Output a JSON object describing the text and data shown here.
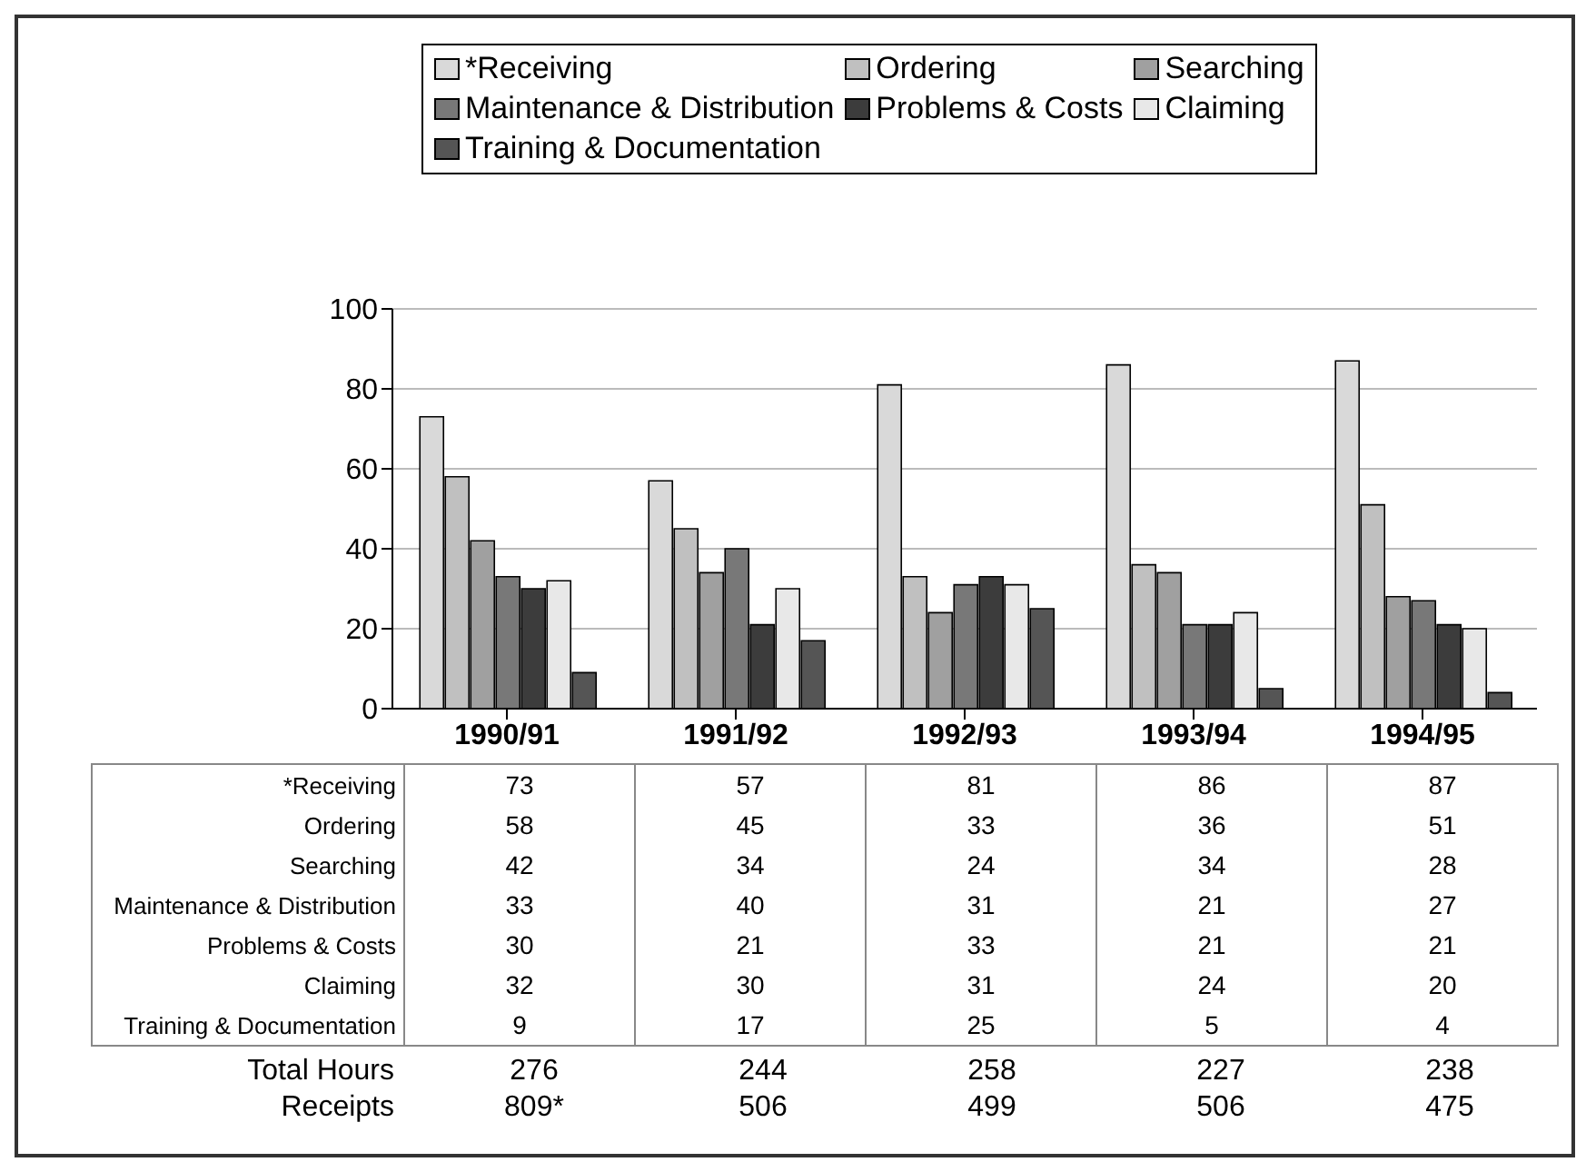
{
  "chart_data": {
    "type": "bar",
    "categories": [
      "1990/91",
      "1991/92",
      "1992/93",
      "1993/94",
      "1994/95"
    ],
    "series": [
      {
        "name": "*Receiving",
        "color": "#d9d9d9",
        "values": [
          73,
          57,
          81,
          86,
          87
        ]
      },
      {
        "name": "Ordering",
        "color": "#c0c0c0",
        "values": [
          58,
          45,
          33,
          36,
          51
        ]
      },
      {
        "name": "Searching",
        "color": "#a0a0a0",
        "values": [
          42,
          34,
          24,
          34,
          28
        ]
      },
      {
        "name": "Maintenance & Distribution",
        "color": "#787878",
        "values": [
          33,
          40,
          31,
          21,
          27
        ]
      },
      {
        "name": "Problems & Costs",
        "color": "#3c3c3c",
        "values": [
          30,
          21,
          33,
          21,
          21
        ]
      },
      {
        "name": "Claiming",
        "color": "#e8e8e8",
        "values": [
          32,
          30,
          31,
          24,
          20
        ]
      },
      {
        "name": "Training & Documentation",
        "color": "#555555",
        "values": [
          9,
          17,
          25,
          5,
          4
        ]
      }
    ],
    "ylim": [
      0,
      100
    ],
    "yticks": [
      0,
      20,
      40,
      60,
      80,
      100
    ],
    "grid": "y",
    "legend": "top",
    "data_labels": true,
    "annotations": [
      "Total Hours",
      "276",
      "244",
      "258",
      "227",
      "238",
      "Receipts",
      "809*",
      "506",
      "499",
      "506",
      "475"
    ]
  }
}
